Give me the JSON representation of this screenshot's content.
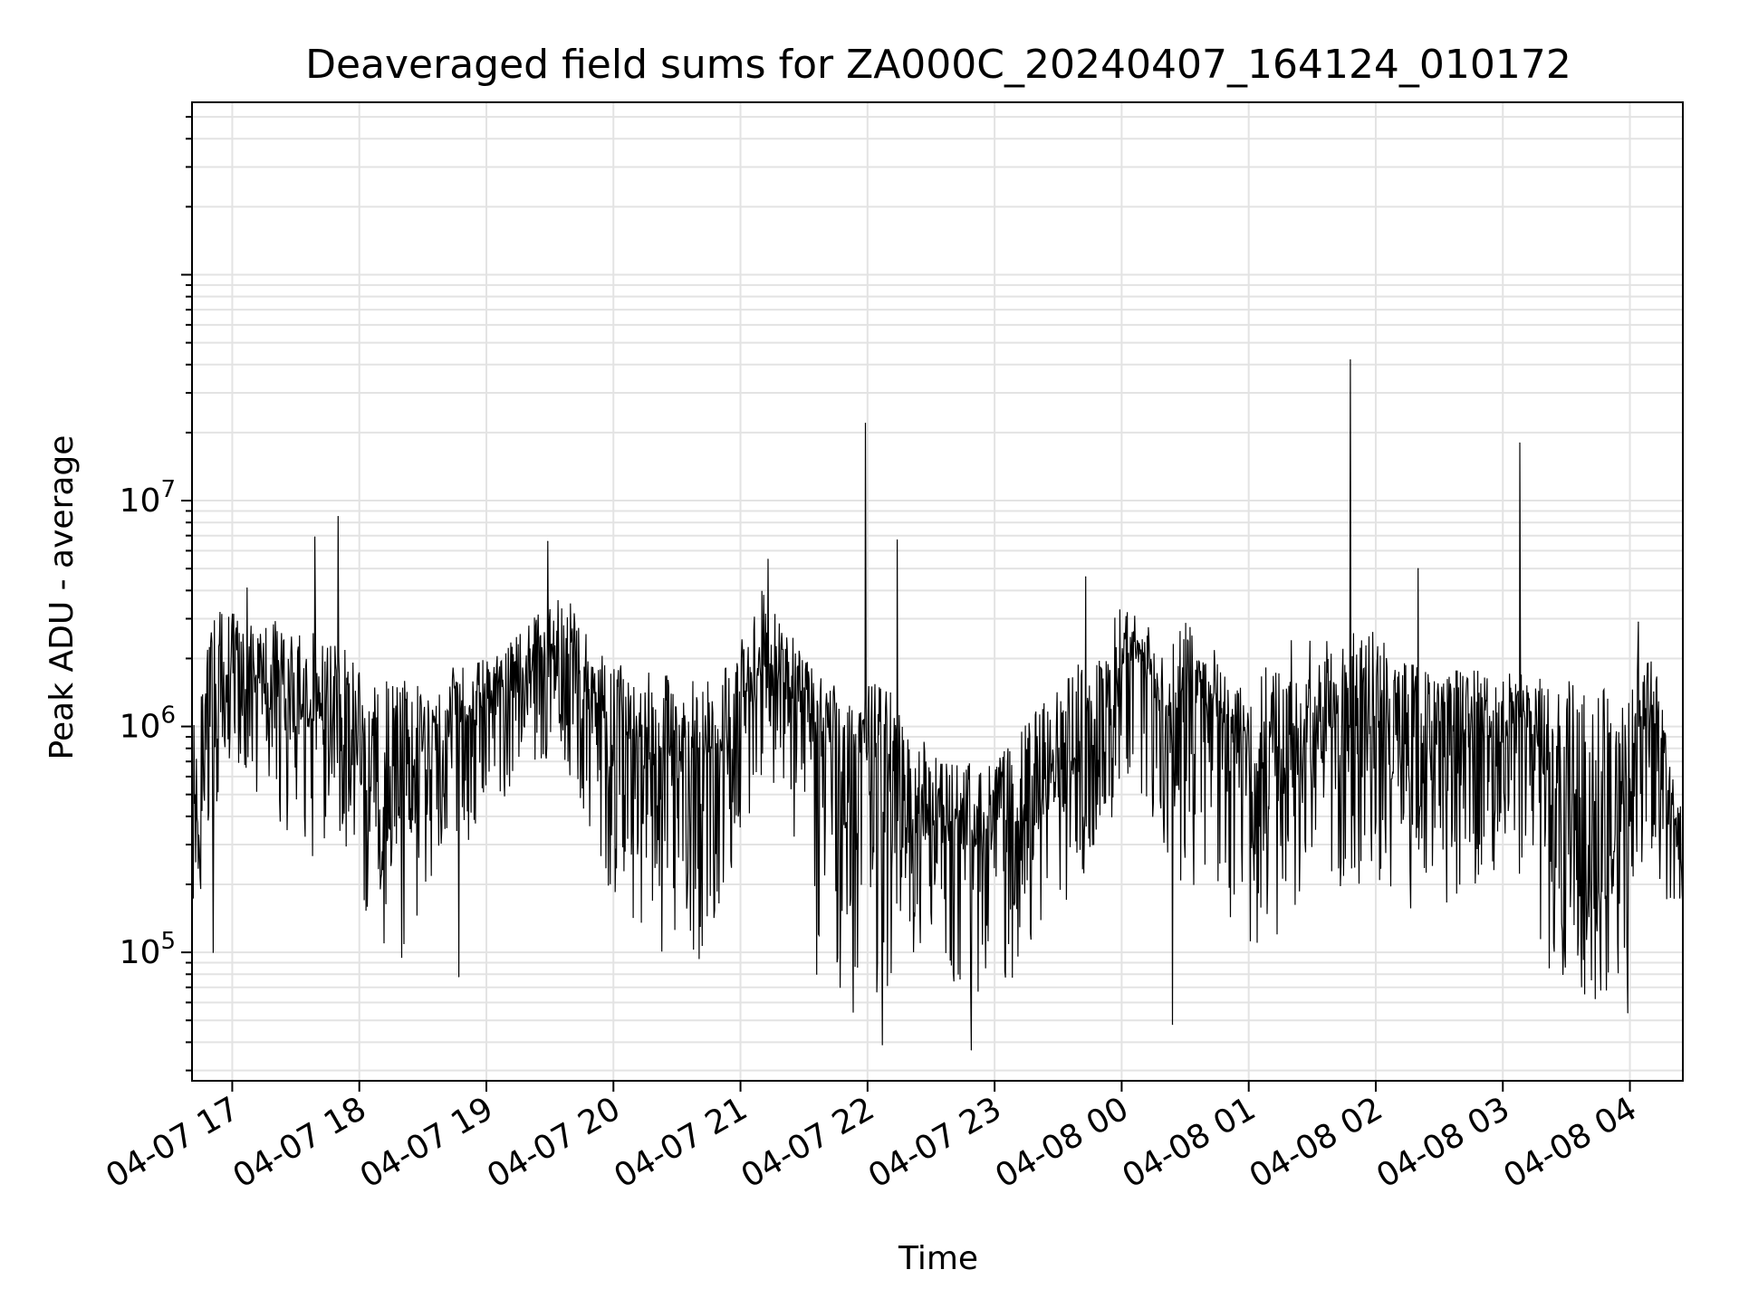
{
  "chart_data": {
    "type": "line",
    "title": "Deaveraged field sums for ZA000C_20240407_164124_010172",
    "xlabel": "Time",
    "ylabel": "Peak ADU - average",
    "yscale": "log",
    "ylim": [
      27000,
      580000000
    ],
    "xlim": [
      "04-07 16:41",
      "04-08 04:25"
    ],
    "grid": true,
    "line_color": "#000000",
    "grid_color": "#e3e3e3",
    "x_ticks": [
      "04-07 17",
      "04-07 18",
      "04-07 19",
      "04-07 20",
      "04-07 21",
      "04-07 22",
      "04-07 23",
      "04-08 00",
      "04-08 01",
      "04-08 02",
      "04-08 03",
      "04-08 04"
    ],
    "y_ticks": [
      {
        "base": "10",
        "exp": "5",
        "value": 100000
      },
      {
        "base": "10",
        "exp": "6",
        "value": 1000000
      },
      {
        "base": "10",
        "exp": "7",
        "value": 10000000
      }
    ],
    "series": [
      {
        "x": [
          "04-07 16:41",
          "04-07 16:45",
          "04-07 16:50",
          "04-07 16:55",
          "04-07 17:00",
          "04-07 17:10",
          "04-07 17:20",
          "04-07 17:30",
          "04-07 17:40",
          "04-07 17:50",
          "04-07 18:00",
          "04-07 18:10",
          "04-07 18:20",
          "04-07 18:30",
          "04-07 18:40",
          "04-07 18:50",
          "04-07 19:00",
          "04-07 19:10",
          "04-07 19:20",
          "04-07 19:30",
          "04-07 19:40",
          "04-07 19:50",
          "04-07 20:00",
          "04-07 20:10",
          "04-07 20:20",
          "04-07 20:30",
          "04-07 20:40",
          "04-07 20:50",
          "04-07 21:00",
          "04-07 21:10",
          "04-07 21:20",
          "04-07 21:30",
          "04-07 21:40",
          "04-07 21:50",
          "04-07 22:00",
          "04-07 22:10",
          "04-07 22:20",
          "04-07 22:30",
          "04-07 22:40",
          "04-07 22:50",
          "04-07 23:00",
          "04-07 23:10",
          "04-07 23:20",
          "04-07 23:30",
          "04-07 23:40",
          "04-07 23:50",
          "04-08 00:00",
          "04-08 00:10",
          "04-08 00:20",
          "04-08 00:30",
          "04-08 00:40",
          "04-08 00:50",
          "04-08 01:00",
          "04-08 01:10",
          "04-08 01:20",
          "04-08 01:30",
          "04-08 01:40",
          "04-08 01:50",
          "04-08 02:00",
          "04-08 02:10",
          "04-08 02:20",
          "04-08 02:30",
          "04-08 02:40",
          "04-08 02:50",
          "04-08 03:00",
          "04-08 03:10",
          "04-08 03:20",
          "04-08 03:30",
          "04-08 03:40",
          "04-08 03:50",
          "04-08 04:00",
          "04-08 04:10",
          "04-08 04:20",
          "04-08 04:25"
        ],
        "baseline": [
          180000,
          400000,
          1000000,
          1400000,
          1500000,
          1600000,
          1400000,
          1100000,
          1100000,
          1200000,
          900000,
          700000,
          650000,
          800000,
          900000,
          1100000,
          1300000,
          1500000,
          1700000,
          2200000,
          1900000,
          1400000,
          1100000,
          900000,
          800000,
          750000,
          700000,
          900000,
          1200000,
          2000000,
          1800000,
          1100000,
          900000,
          800000,
          800000,
          700000,
          500000,
          400000,
          380000,
          350000,
          350000,
          380000,
          450000,
          650000,
          750000,
          900000,
          1800000,
          2100000,
          1000000,
          1600000,
          1300000,
          1000000,
          700000,
          700000,
          900000,
          1000000,
          1100000,
          1000000,
          1100000,
          1000000,
          900000,
          1000000,
          1000000,
          1100000,
          1200000,
          1100000,
          700000,
          300000,
          250000,
          250000,
          700000,
          1300000,
          500000,
          170000
        ],
        "high": [
          900000,
          1800000,
          2800000,
          3500000,
          3200000,
          3000000,
          3000000,
          2500000,
          3000000,
          2500000,
          1800000,
          1600000,
          1600000,
          1700000,
          1800000,
          1900000,
          2000000,
          2300000,
          3000000,
          4000000,
          3500000,
          2300000,
          1900000,
          1800000,
          1700000,
          1700000,
          1600000,
          1700000,
          2500000,
          4000000,
          3200000,
          2000000,
          1600000,
          1500000,
          1600000,
          1500000,
          1000000,
          800000,
          700000,
          700000,
          700000,
          900000,
          1200000,
          1500000,
          2000000,
          2300000,
          3500000,
          3000000,
          2200000,
          3000000,
          2500000,
          1800000,
          1600000,
          2000000,
          2500000,
          2500000,
          2400000,
          2600000,
          2800000,
          2000000,
          1900000,
          1800000,
          1800000,
          1800000,
          1800000,
          1800000,
          1700000,
          1600000,
          1500000,
          1500000,
          1700000,
          2300000,
          700000,
          400000
        ],
        "low": [
          140000,
          180000,
          300000,
          600000,
          600000,
          500000,
          400000,
          300000,
          250000,
          300000,
          150000,
          110000,
          100000,
          150000,
          250000,
          300000,
          400000,
          500000,
          600000,
          700000,
          600000,
          300000,
          150000,
          120000,
          100000,
          100000,
          90000,
          120000,
          300000,
          600000,
          500000,
          200000,
          80000,
          60000,
          40000,
          70000,
          100000,
          80000,
          70000,
          60000,
          60000,
          80000,
          120000,
          150000,
          200000,
          250000,
          300000,
          400000,
          150000,
          200000,
          180000,
          130000,
          100000,
          100000,
          150000,
          200000,
          200000,
          120000,
          130000,
          150000,
          150000,
          150000,
          180000,
          200000,
          250000,
          200000,
          80000,
          65000,
          60000,
          58000,
          120000,
          250000,
          150000,
          140000
        ],
        "spikes": [
          {
            "x": "04-07 17:07",
            "y": 4100000
          },
          {
            "x": "04-07 17:39",
            "y": 6900000
          },
          {
            "x": "04-07 17:50",
            "y": 8500000
          },
          {
            "x": "04-07 19:29",
            "y": 6600000
          },
          {
            "x": "04-07 21:13",
            "y": 5500000
          },
          {
            "x": "04-07 21:59",
            "y": 22000000
          },
          {
            "x": "04-07 22:14",
            "y": 6700000
          },
          {
            "x": "04-07 23:43",
            "y": 4600000
          },
          {
            "x": "04-08 01:48",
            "y": 42000000
          },
          {
            "x": "04-08 02:20",
            "y": 5000000
          },
          {
            "x": "04-08 03:08",
            "y": 18000000
          },
          {
            "x": "04-08 04:04",
            "y": 2900000
          }
        ],
        "dips": [
          {
            "x": "04-07 16:51",
            "y": 100000
          },
          {
            "x": "04-07 18:20",
            "y": 95000
          },
          {
            "x": "04-07 18:47",
            "y": 78000
          },
          {
            "x": "04-07 21:36",
            "y": 80000
          },
          {
            "x": "04-07 22:07",
            "y": 39000
          },
          {
            "x": "04-07 22:49",
            "y": 37000
          },
          {
            "x": "04-08 00:24",
            "y": 48000
          },
          {
            "x": "04-08 03:59",
            "y": 54000
          }
        ]
      }
    ]
  }
}
